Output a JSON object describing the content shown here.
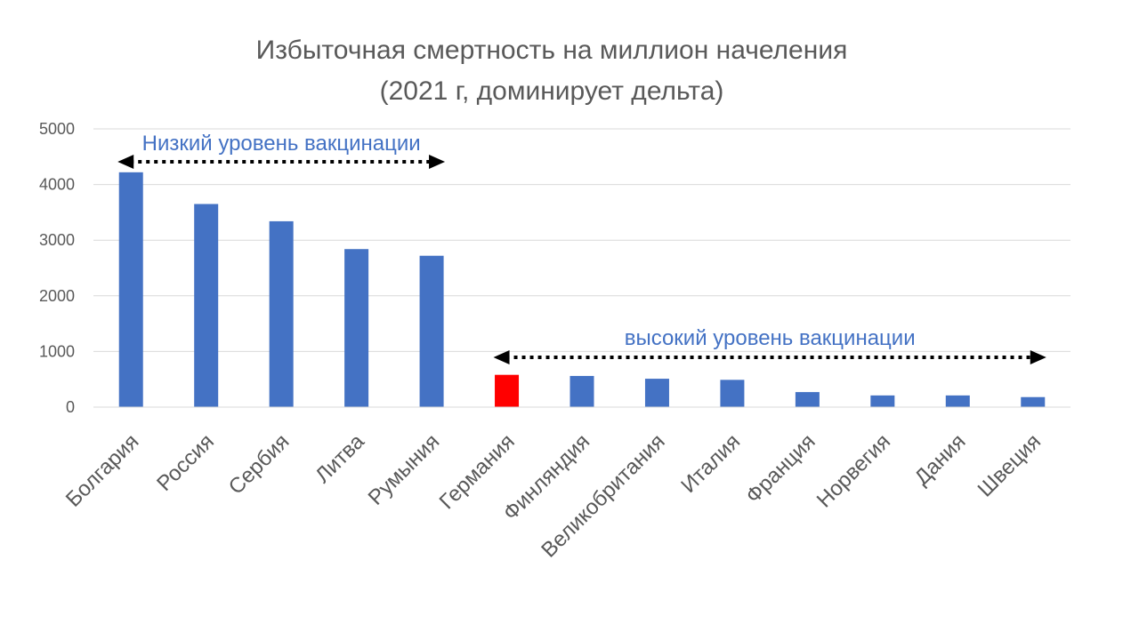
{
  "chart_data": {
    "type": "bar",
    "title": "Избыточная смертность на миллион начеления",
    "subtitle": "(2021 г, доминирует дельта)",
    "xlabel": "",
    "ylabel": "",
    "ylim": [
      0,
      5000
    ],
    "yticks": [
      "0",
      "1000",
      "2000",
      "3000",
      "4000",
      "5000"
    ],
    "grid": true,
    "categories": [
      "Болгария",
      "Россия",
      "Сербия",
      "Литва",
      "Румыния",
      "Германия",
      "Финляндия",
      "Великобритания",
      "Италия",
      "Франция",
      "Норвегия",
      "Дания",
      "Швеция"
    ],
    "values": [
      4220,
      3650,
      3340,
      2840,
      2720,
      580,
      560,
      510,
      490,
      270,
      210,
      210,
      180
    ],
    "bar_color": "#4472C4",
    "highlight": {
      "category": "Германия",
      "color": "#FF0000"
    },
    "annotations": [
      {
        "text": "Низкий уровень вакцинации",
        "color": "#4472C4",
        "from": "Болгария",
        "to": "Румыния"
      },
      {
        "text": "высокий уровень вакцинации",
        "color": "#4472C4",
        "from": "Германия",
        "to": "Швеция"
      }
    ]
  }
}
